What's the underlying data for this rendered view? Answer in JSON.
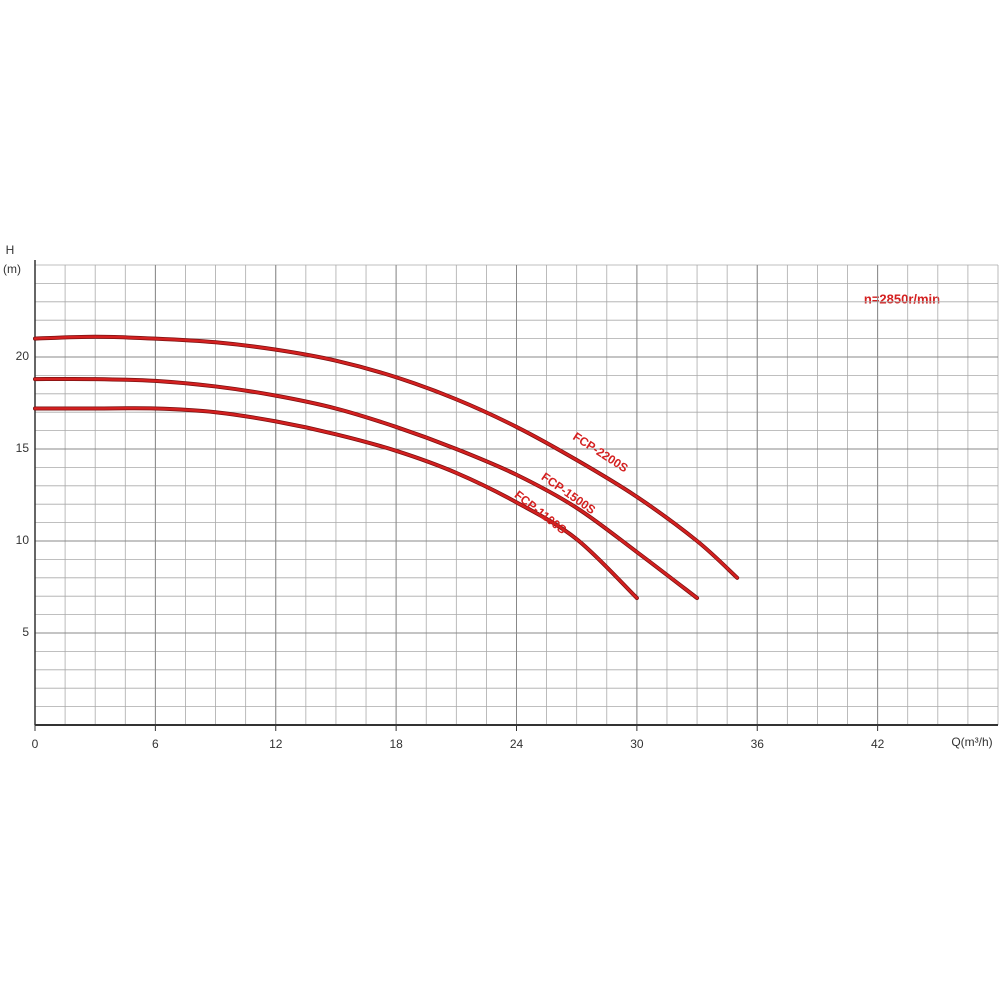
{
  "chart_data": {
    "type": "line",
    "y_label": "H",
    "y_unit": "(m)",
    "x_label": "Q(m³/h)",
    "annotation": "n=2850r/min",
    "x": [
      0,
      3,
      6,
      9,
      12,
      15,
      18,
      21,
      24,
      27,
      30,
      33,
      35
    ],
    "series": [
      {
        "name": "FCP-2200S",
        "color": "#d42020",
        "values": [
          21,
          21.1,
          21,
          20.8,
          20.4,
          19.8,
          18.9,
          17.7,
          16.2,
          14.4,
          12.4,
          10,
          8
        ]
      },
      {
        "name": "FCP-1500S",
        "color": "#d42020",
        "values": [
          18.8,
          18.8,
          18.7,
          18.4,
          17.9,
          17.2,
          16.2,
          15,
          13.6,
          11.8,
          9.4,
          6.9,
          null
        ]
      },
      {
        "name": "FCP-1100S",
        "color": "#d42020",
        "values": [
          17.2,
          17.2,
          17.2,
          17,
          16.5,
          15.8,
          14.9,
          13.7,
          12.1,
          10.1,
          6.9,
          null,
          null
        ]
      }
    ],
    "xlim": [
      0,
      48
    ],
    "ylim": [
      0,
      25
    ],
    "xticks": [
      0,
      6,
      12,
      18,
      24,
      30,
      36,
      42
    ],
    "yticks": [
      5,
      10,
      15,
      20
    ],
    "grid": true
  }
}
